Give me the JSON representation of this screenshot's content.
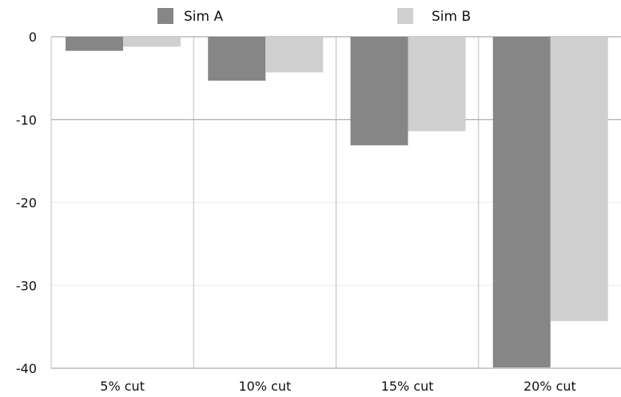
{
  "chart_data": {
    "type": "bar",
    "categories": [
      "5% cut",
      "10% cut",
      "15% cut",
      "20% cut"
    ],
    "series": [
      {
        "name": "Sim A",
        "values": [
          -1.7,
          -5.3,
          -13.1,
          -39.9
        ],
        "color": "#868686"
      },
      {
        "name": "Sim B",
        "values": [
          -1.2,
          -4.3,
          -11.4,
          -34.3
        ],
        "color": "#cfcfcf"
      }
    ],
    "ylim": [
      -40,
      0
    ],
    "yticks": [
      0,
      -10,
      -20,
      -30,
      -40
    ],
    "ytick_labels": [
      "0",
      "-10",
      "-20",
      "-30",
      "-40"
    ],
    "xlabel": "",
    "ylabel": "",
    "title": "",
    "legend_position": "top",
    "grid": {
      "major": [
        0,
        -10,
        -40
      ],
      "minor": [
        -20,
        -30
      ],
      "vertical_separators": true
    }
  }
}
